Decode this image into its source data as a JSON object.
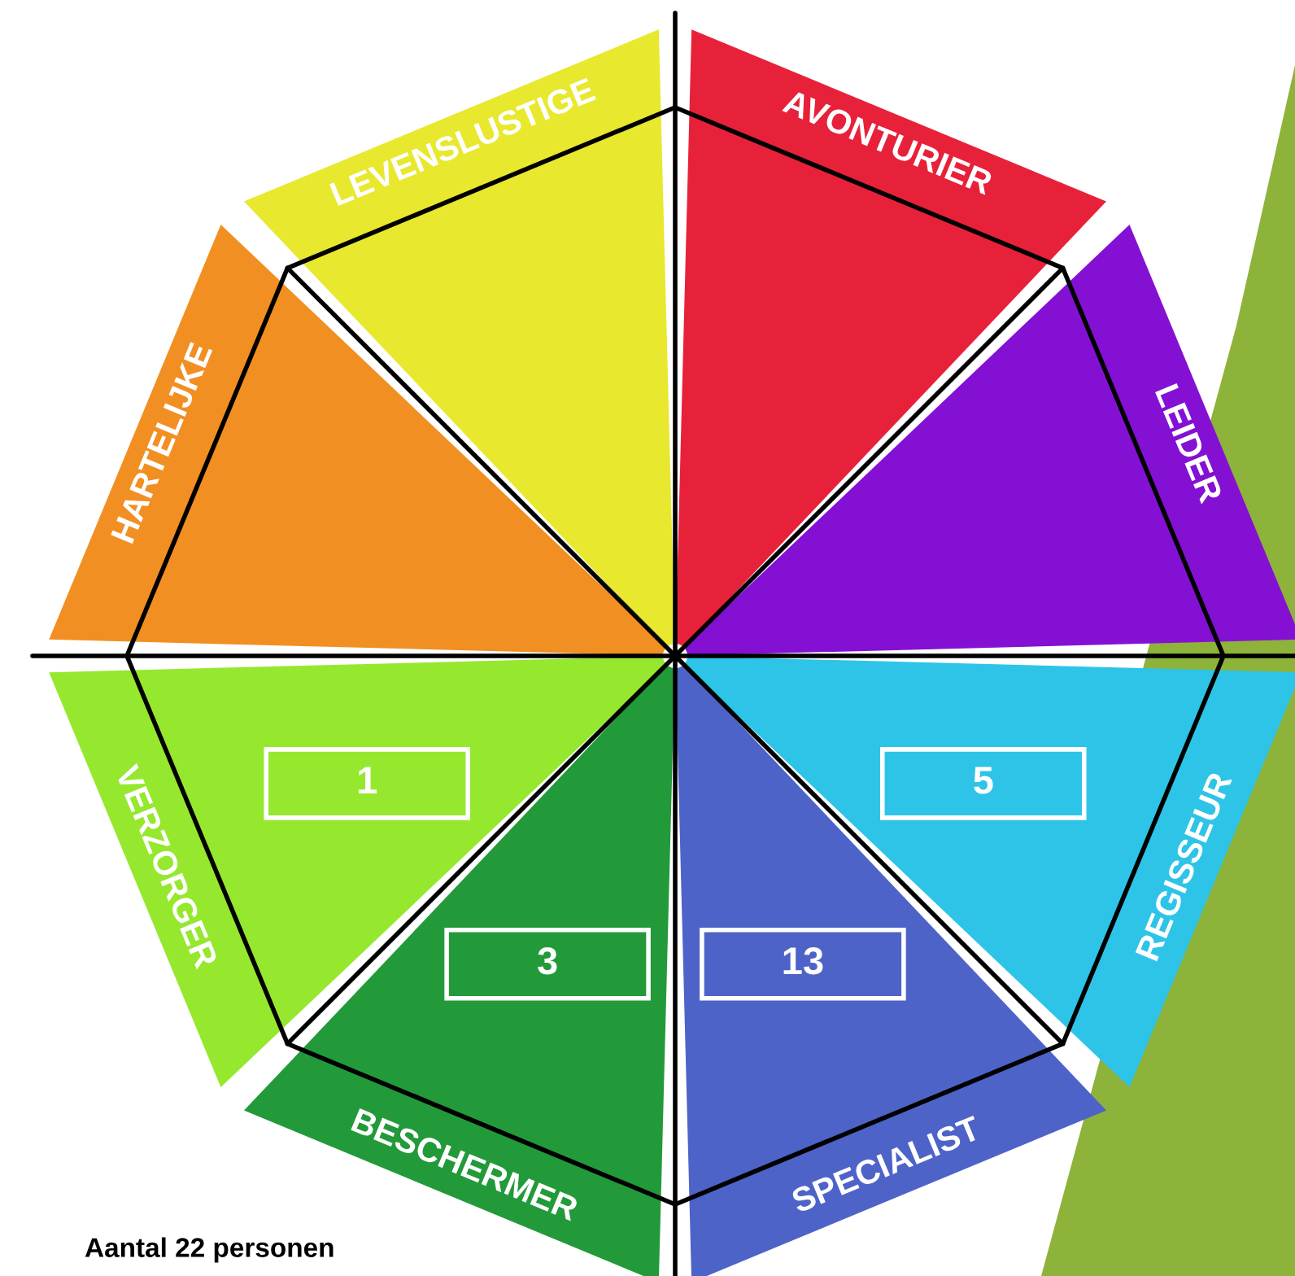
{
  "chart_data": {
    "type": "other",
    "categories": [
      "AVONTURIER",
      "LEIDER",
      "REGISSEUR",
      "SPECIALIST",
      "BESCHERMER",
      "VERZORGER",
      "HARTELIJKE",
      "LEVENSLUSTIGE"
    ],
    "values": [
      null,
      null,
      5,
      13,
      3,
      1,
      null,
      null
    ],
    "colors": [
      "#e8213a",
      "#8410d4",
      "#2ec4e8",
      "#4e63c8",
      "#229a3a",
      "#95e82e",
      "#f28f22",
      "#e8e82e"
    ],
    "data_labels": true,
    "annotations": [
      "Aantal 22 personen"
    ]
  }
}
